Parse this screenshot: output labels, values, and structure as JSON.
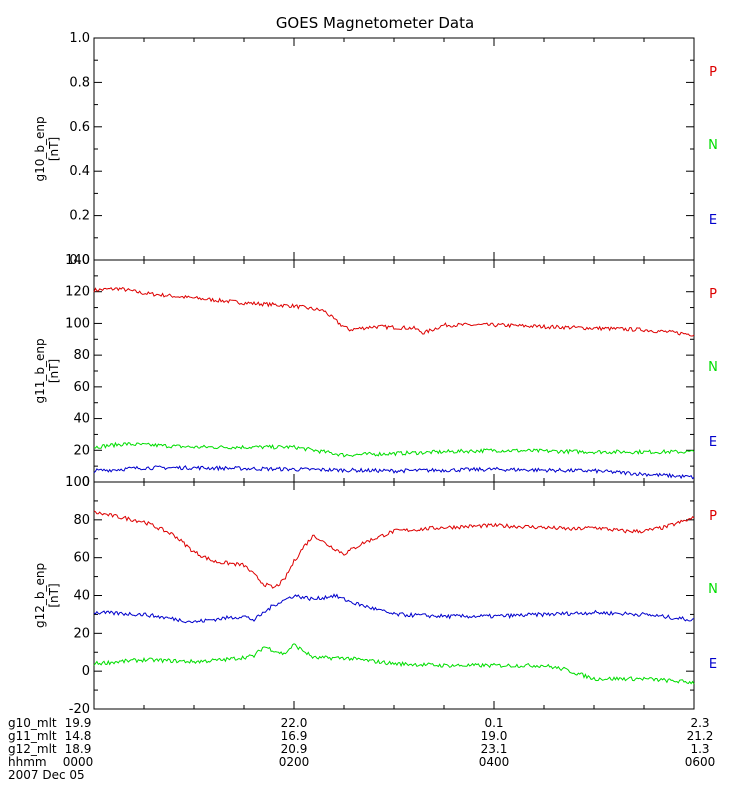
{
  "title": "GOES Magnetometer Data",
  "colors": {
    "P": "#dd0000",
    "N": "#00dd00",
    "E": "#0000cc"
  },
  "x_ticks": [
    "0000",
    "0200",
    "0400",
    "0600"
  ],
  "footer": {
    "rows": [
      {
        "label": "g10_mlt",
        "values": [
          "19.9",
          "22.0",
          "0.1",
          "2.3"
        ]
      },
      {
        "label": "g11_mlt",
        "values": [
          "14.8",
          "16.9",
          "19.0",
          "21.2"
        ]
      },
      {
        "label": "g12_mlt",
        "values": [
          "18.9",
          "20.9",
          "23.1",
          "1.3"
        ]
      },
      {
        "label": "hhmm",
        "values": [
          "0000",
          "0200",
          "0400",
          "0600"
        ]
      }
    ],
    "date": "2007 Dec 05"
  },
  "chart_data": [
    {
      "type": "line",
      "ylabel": "g10_b_enp",
      "yunit": "[nT]",
      "ylim": [
        0,
        1
      ],
      "yticks": [
        "0.0",
        "0.2",
        "0.4",
        "0.6",
        "0.8",
        "1.0"
      ],
      "legend": [
        "P",
        "N",
        "E"
      ],
      "series": []
    },
    {
      "type": "line",
      "ylabel": "g11_b_enp",
      "yunit": "[nT]",
      "ylim": [
        0,
        140
      ],
      "yticks": [
        "0",
        "20",
        "40",
        "60",
        "80",
        "100",
        "120",
        "140"
      ],
      "legend": [
        "P",
        "N",
        "E"
      ],
      "series": [
        {
          "name": "P",
          "x": [
            0,
            0.25,
            0.5,
            1,
            1.5,
            2,
            2.3,
            2.45,
            2.55,
            2.8,
            3.2,
            3.3,
            3.5,
            4,
            5,
            5.5,
            6
          ],
          "values": [
            121,
            122,
            119,
            116,
            113,
            111,
            108,
            100,
            96,
            98,
            97,
            94,
            99,
            99,
            97,
            96,
            93
          ]
        },
        {
          "name": "N",
          "x": [
            0,
            0.3,
            1,
            2,
            2.5,
            3,
            4,
            5,
            6
          ],
          "values": [
            22,
            24,
            22,
            22,
            17,
            18,
            20,
            19,
            19
          ]
        },
        {
          "name": "E",
          "x": [
            0,
            0.5,
            1,
            2,
            3,
            4,
            5,
            5.5,
            6
          ],
          "values": [
            7,
            9,
            9,
            8,
            7,
            8,
            7,
            5,
            3
          ]
        }
      ]
    },
    {
      "type": "line",
      "ylabel": "g12_b_enp",
      "yunit": "[nT]",
      "ylim": [
        -20,
        100
      ],
      "yticks": [
        "-20",
        "0",
        "20",
        "40",
        "60",
        "80",
        "100"
      ],
      "legend": [
        "P",
        "N",
        "E"
      ],
      "series": [
        {
          "name": "P",
          "x": [
            0,
            0.2,
            0.5,
            0.8,
            1,
            1.2,
            1.5,
            1.7,
            1.8,
            1.9,
            2.0,
            2.1,
            2.2,
            2.3,
            2.5,
            2.7,
            3,
            3.5,
            4,
            4.5,
            4.8,
            5,
            5.3,
            5.5,
            5.7,
            6
          ],
          "values": [
            84,
            82,
            79,
            72,
            63,
            58,
            56,
            46,
            44,
            48,
            58,
            66,
            72,
            68,
            62,
            68,
            74,
            76,
            77,
            76,
            75,
            76,
            74,
            74,
            76,
            81
          ]
        },
        {
          "name": "N",
          "x": [
            0,
            0.5,
            1,
            1.3,
            1.6,
            1.7,
            1.9,
            2.0,
            2.2,
            2.5,
            3,
            3.5,
            4,
            4.5,
            4.7,
            5,
            5.5,
            6
          ],
          "values": [
            4,
            6,
            5,
            6,
            8,
            13,
            9,
            14,
            7,
            7,
            4,
            3,
            3,
            3,
            1,
            -4,
            -4,
            -6
          ]
        },
        {
          "name": "E",
          "x": [
            0,
            0.5,
            1,
            1.3,
            1.5,
            1.6,
            1.8,
            2.0,
            2.2,
            2.4,
            2.6,
            3,
            3.5,
            4,
            4.5,
            5,
            5.5,
            6
          ],
          "values": [
            31,
            30,
            26,
            28,
            29,
            27,
            35,
            40,
            38,
            40,
            36,
            30,
            29,
            29,
            30,
            31,
            30,
            27
          ]
        }
      ]
    }
  ]
}
